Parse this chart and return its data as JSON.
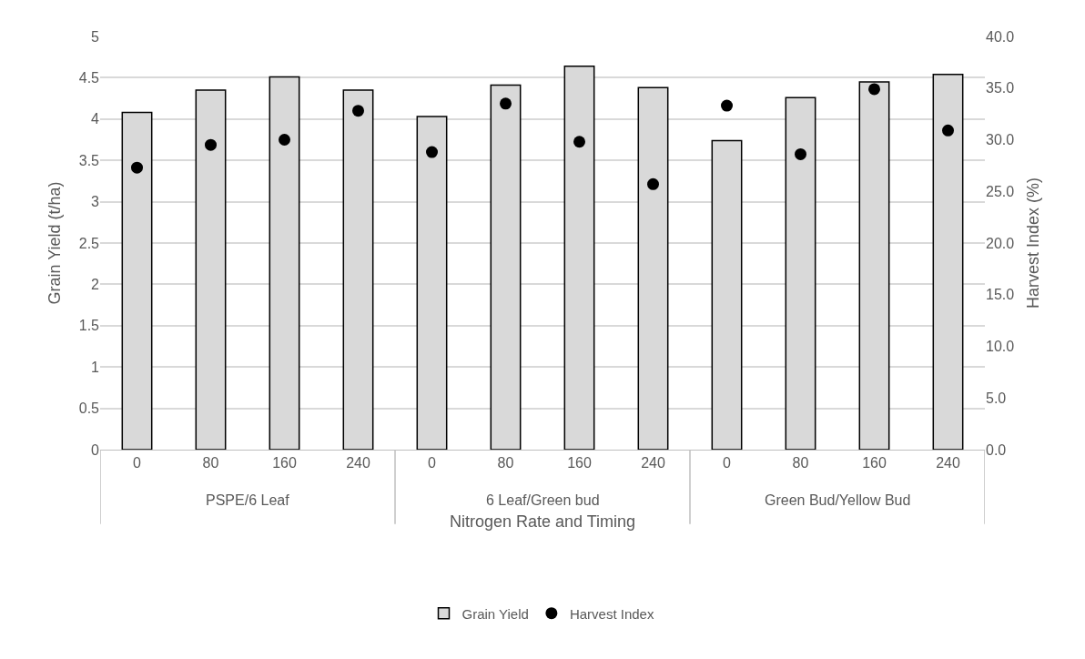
{
  "chart_data": {
    "type": "bar",
    "xlabel": "Nitrogen Rate and Timing",
    "ylabel": "Grain Yield (t/ha)",
    "y2label": "Harvest Index (%)",
    "categories": [
      "0",
      "80",
      "160",
      "240",
      "0",
      "80",
      "160",
      "240",
      "0",
      "80",
      "160",
      "240"
    ],
    "annotations": [
      "PSPE/6 Leaf",
      "6 Leaf/Green bud",
      "Green Bud/Yellow Bud"
    ],
    "series": [
      {
        "name": "Grain Yield",
        "color": "#d9d9d9",
        "values": [
          4.08,
          4.35,
          4.51,
          4.35,
          4.03,
          4.41,
          4.64,
          4.38,
          3.74,
          4.26,
          4.45,
          4.54
        ]
      },
      {
        "name": "Harvest Index",
        "type": "scatter",
        "axis": "y2",
        "marker": "circle",
        "color": "#000000",
        "values": [
          27.3,
          29.5,
          30.0,
          32.8,
          28.8,
          33.5,
          29.8,
          25.7,
          33.3,
          28.6,
          34.9,
          30.9
        ]
      }
    ],
    "ylim": [
      0,
      5
    ],
    "yticks": [
      0,
      0.5,
      1,
      1.5,
      2,
      2.5,
      3,
      3.5,
      4,
      4.5,
      5
    ],
    "y2lim": [
      0,
      40
    ],
    "y2ticks": [
      {
        "value": 0,
        "label": "0.0"
      },
      {
        "value": 5,
        "label": "5.0"
      },
      {
        "value": 10,
        "label": "10.0"
      },
      {
        "value": 15,
        "label": "15.0"
      },
      {
        "value": 20,
        "label": "20.0"
      },
      {
        "value": 25,
        "label": "25.0"
      },
      {
        "value": 30,
        "label": "30.0"
      },
      {
        "value": 35,
        "label": "35.0"
      },
      {
        "value": 40,
        "label": "40.0"
      }
    ],
    "grid": "y",
    "legend": "bottom"
  }
}
